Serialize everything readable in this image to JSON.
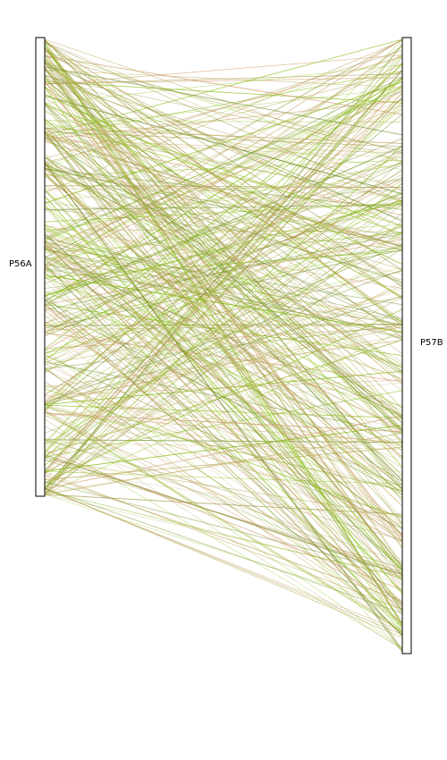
{
  "diagram": {
    "type": "parallel-link-comparison",
    "left_axis": {
      "label": "P56A"
    },
    "right_axis": {
      "label": "P57B"
    },
    "link_colors": [
      "#9acd32",
      "#7fb800",
      "#8b8b2a",
      "#a09040",
      "#d2a070",
      "#b8a050",
      "#6b8e23",
      "#c0b060"
    ],
    "link_count": 420,
    "seed": 20240517
  }
}
